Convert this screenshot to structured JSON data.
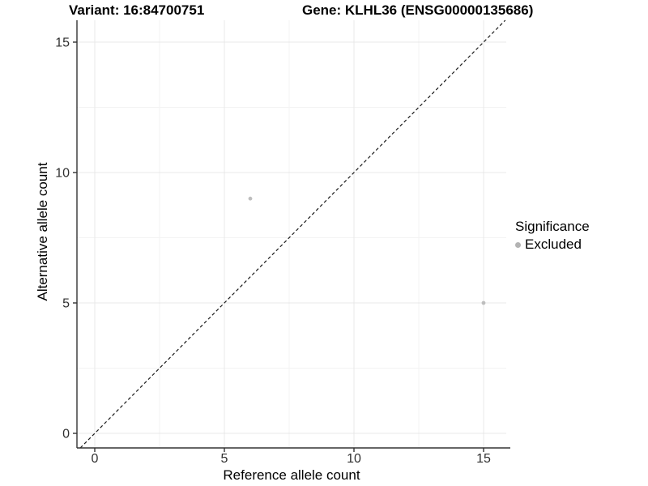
{
  "figure": {
    "title_left": "Variant: 16:84700751",
    "title_right": "Gene: KLHL36 (ENSG00000135686)"
  },
  "chart_data": {
    "type": "scatter",
    "title": "Variant: 16:84700751   Gene: KLHL36 (ENSG00000135686)",
    "xlabel": "Reference allele count",
    "ylabel": "Alternative allele count",
    "xlim": [
      -0.7,
      15.9
    ],
    "ylim": [
      -0.6,
      15.9
    ],
    "xticks": [
      0,
      5,
      10,
      15
    ],
    "yticks": [
      0,
      5,
      10,
      15
    ],
    "minor_xticks": [
      2.5,
      7.5,
      12.5
    ],
    "minor_yticks": [
      2.5,
      7.5,
      12.5
    ],
    "grid": "major and minor gridlines, white background",
    "reference_line": {
      "type": "identity",
      "slope": 1,
      "intercept": 0,
      "style": "dashed",
      "color": "#1a1a1a"
    },
    "series": [
      {
        "name": "Excluded",
        "color": "#bebebe",
        "points": [
          {
            "x": 6,
            "y": 9
          },
          {
            "x": 15,
            "y": 5
          }
        ]
      }
    ],
    "legend": {
      "title": "Significance",
      "position": "right",
      "items": [
        {
          "label": "Excluded",
          "color": "#b3b3b3"
        }
      ]
    },
    "colors": {
      "grid_major": "#e8e8e8",
      "grid_minor": "#f3f3f3",
      "axis": "#333333",
      "tick_label": "#303030"
    }
  }
}
